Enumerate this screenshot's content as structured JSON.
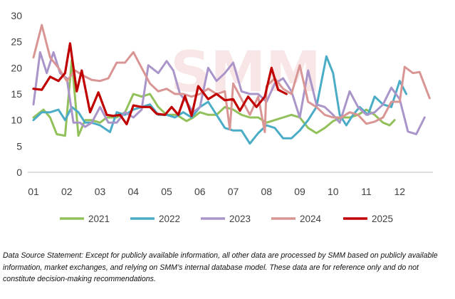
{
  "chart_data": {
    "type": "line",
    "title": "",
    "xlabel": "",
    "ylabel": "",
    "ylim": [
      0,
      30
    ],
    "y_ticks": [
      0,
      5,
      10,
      15,
      20,
      25,
      30
    ],
    "x_ticks": [
      "01",
      "02",
      "03",
      "04",
      "05",
      "06",
      "07",
      "08",
      "09",
      "10",
      "11",
      "12"
    ],
    "x_unit": "month (fractional position within year)",
    "grid": false,
    "legend_position": "bottom",
    "watermark": "SMM",
    "series": [
      {
        "name": "2021",
        "color": "#92c05a",
        "points": [
          [
            1.0,
            10.5
          ],
          [
            1.3,
            12.0
          ],
          [
            1.5,
            10.5
          ],
          [
            1.7,
            7.3
          ],
          [
            1.95,
            7.0
          ],
          [
            2.15,
            21.5
          ],
          [
            2.35,
            7.0
          ],
          [
            2.55,
            10.0
          ],
          [
            2.75,
            10.0
          ],
          [
            3.0,
            9.5
          ],
          [
            3.2,
            10.5
          ],
          [
            3.5,
            10.5
          ],
          [
            3.75,
            11.5
          ],
          [
            4.0,
            15.0
          ],
          [
            4.25,
            14.5
          ],
          [
            4.5,
            15.0
          ],
          [
            4.75,
            12.5
          ],
          [
            5.0,
            11.0
          ],
          [
            5.3,
            11.0
          ],
          [
            5.6,
            9.8
          ],
          [
            5.8,
            10.5
          ],
          [
            6.0,
            11.5
          ],
          [
            6.25,
            11.0
          ],
          [
            6.5,
            11.0
          ],
          [
            6.75,
            12.5
          ],
          [
            7.0,
            12.0
          ],
          [
            7.25,
            11.0
          ],
          [
            7.5,
            10.5
          ],
          [
            7.75,
            10.5
          ],
          [
            8.0,
            9.5
          ],
          [
            8.25,
            10.0
          ],
          [
            8.5,
            10.5
          ],
          [
            8.75,
            11.0
          ],
          [
            9.0,
            10.5
          ],
          [
            9.25,
            8.5
          ],
          [
            9.5,
            7.5
          ],
          [
            9.75,
            8.5
          ],
          [
            10.0,
            9.8
          ],
          [
            10.25,
            10.5
          ],
          [
            10.5,
            10.5
          ],
          [
            10.75,
            11.0
          ],
          [
            11.0,
            12.0
          ],
          [
            11.25,
            11.0
          ],
          [
            11.5,
            9.5
          ],
          [
            11.7,
            9.0
          ],
          [
            11.85,
            10.0
          ]
        ]
      },
      {
        "name": "2022",
        "color": "#4bacc6",
        "points": [
          [
            1.0,
            10.0
          ],
          [
            1.25,
            11.5
          ],
          [
            1.5,
            11.5
          ],
          [
            1.75,
            12.0
          ],
          [
            1.95,
            10.0
          ],
          [
            2.15,
            12.5
          ],
          [
            2.35,
            11.5
          ],
          [
            2.55,
            9.5
          ],
          [
            2.75,
            9.5
          ],
          [
            3.0,
            9.0
          ],
          [
            3.3,
            7.7
          ],
          [
            3.5,
            11.5
          ],
          [
            3.75,
            11.0
          ],
          [
            4.0,
            12.0
          ],
          [
            4.25,
            12.5
          ],
          [
            4.5,
            13.0
          ],
          [
            4.75,
            11.0
          ],
          [
            5.0,
            11.0
          ],
          [
            5.25,
            10.5
          ],
          [
            5.5,
            11.5
          ],
          [
            5.75,
            10.5
          ],
          [
            6.0,
            12.5
          ],
          [
            6.25,
            13.5
          ],
          [
            6.5,
            11.0
          ],
          [
            6.75,
            8.5
          ],
          [
            7.0,
            8.0
          ],
          [
            7.25,
            8.0
          ],
          [
            7.5,
            5.5
          ],
          [
            7.75,
            7.5
          ],
          [
            8.0,
            9.0
          ],
          [
            8.25,
            8.5
          ],
          [
            8.5,
            6.5
          ],
          [
            8.75,
            6.5
          ],
          [
            9.0,
            8.0
          ],
          [
            9.25,
            10.0
          ],
          [
            9.5,
            12.5
          ],
          [
            9.8,
            22.2
          ],
          [
            10.0,
            19.0
          ],
          [
            10.2,
            11.0
          ],
          [
            10.4,
            9.0
          ],
          [
            10.6,
            11.0
          ],
          [
            10.8,
            12.5
          ],
          [
            11.05,
            11.0
          ],
          [
            11.25,
            14.5
          ],
          [
            11.5,
            13.0
          ],
          [
            11.75,
            12.5
          ],
          [
            12.0,
            17.5
          ],
          [
            12.2,
            15.0
          ]
        ]
      },
      {
        "name": "2023",
        "color": "#a995c9",
        "points": [
          [
            1.0,
            13.0
          ],
          [
            1.2,
            23.0
          ],
          [
            1.4,
            19.0
          ],
          [
            1.6,
            23.0
          ],
          [
            1.8,
            19.0
          ],
          [
            2.0,
            18.0
          ],
          [
            2.2,
            9.5
          ],
          [
            2.4,
            9.5
          ],
          [
            2.55,
            8.7
          ],
          [
            2.75,
            9.5
          ],
          [
            3.0,
            12.5
          ],
          [
            3.25,
            9.5
          ],
          [
            3.5,
            9.5
          ],
          [
            3.75,
            11.5
          ],
          [
            4.0,
            10.5
          ],
          [
            4.25,
            12.0
          ],
          [
            4.45,
            20.5
          ],
          [
            4.75,
            19.0
          ],
          [
            5.0,
            21.3
          ],
          [
            5.2,
            19.5
          ],
          [
            5.4,
            15.0
          ],
          [
            5.6,
            13.5
          ],
          [
            5.8,
            11.5
          ],
          [
            6.0,
            12.5
          ],
          [
            6.25,
            20.0
          ],
          [
            6.5,
            17.5
          ],
          [
            6.75,
            19.0
          ],
          [
            7.0,
            21.0
          ],
          [
            7.25,
            15.5
          ],
          [
            7.5,
            15.0
          ],
          [
            7.75,
            15.0
          ],
          [
            8.0,
            13.5
          ],
          [
            8.25,
            17.0
          ],
          [
            8.5,
            18.0
          ],
          [
            8.75,
            15.5
          ],
          [
            9.0,
            10.5
          ],
          [
            9.25,
            19.5
          ],
          [
            9.5,
            13.0
          ],
          [
            9.75,
            12.5
          ],
          [
            10.0,
            11.0
          ],
          [
            10.2,
            9.5
          ],
          [
            10.5,
            15.5
          ],
          [
            10.75,
            12.5
          ],
          [
            11.0,
            11.0
          ],
          [
            11.25,
            11.5
          ],
          [
            11.5,
            13.0
          ],
          [
            11.75,
            16.2
          ],
          [
            12.0,
            14.0
          ],
          [
            12.25,
            7.8
          ],
          [
            12.5,
            7.3
          ],
          [
            12.75,
            10.5
          ]
        ]
      },
      {
        "name": "2024",
        "color": "#d99594",
        "points": [
          [
            1.0,
            22.0
          ],
          [
            1.25,
            28.2
          ],
          [
            1.5,
            22.0
          ],
          [
            1.75,
            20.0
          ],
          [
            2.0,
            17.5
          ],
          [
            2.25,
            19.5
          ],
          [
            2.5,
            18.5
          ],
          [
            2.75,
            17.7
          ],
          [
            3.0,
            17.5
          ],
          [
            3.25,
            18.0
          ],
          [
            3.5,
            21.0
          ],
          [
            3.75,
            21.0
          ],
          [
            4.0,
            23.0
          ],
          [
            4.25,
            20.0
          ],
          [
            4.5,
            17.0
          ],
          [
            4.75,
            15.5
          ],
          [
            5.0,
            16.0
          ],
          [
            5.25,
            15.0
          ],
          [
            5.5,
            15.0
          ],
          [
            5.75,
            14.5
          ],
          [
            6.0,
            15.0
          ],
          [
            6.25,
            16.0
          ],
          [
            6.5,
            15.0
          ],
          [
            6.75,
            15.5
          ],
          [
            6.9,
            8.2
          ],
          [
            7.0,
            17.0
          ],
          [
            7.25,
            14.0
          ],
          [
            7.5,
            11.0
          ],
          [
            7.75,
            14.5
          ],
          [
            7.95,
            7.7
          ],
          [
            8.0,
            16.5
          ],
          [
            8.25,
            18.0
          ],
          [
            8.5,
            16.0
          ],
          [
            8.75,
            15.0
          ],
          [
            9.0,
            20.5
          ],
          [
            9.25,
            13.5
          ],
          [
            9.5,
            12.5
          ],
          [
            9.75,
            11.0
          ],
          [
            10.0,
            10.5
          ],
          [
            10.25,
            10.5
          ],
          [
            10.5,
            11.5
          ],
          [
            10.75,
            11.0
          ],
          [
            11.0,
            9.3
          ],
          [
            11.25,
            9.7
          ],
          [
            11.5,
            10.5
          ],
          [
            11.75,
            13.5
          ],
          [
            12.0,
            13.5
          ],
          [
            12.15,
            20.2
          ],
          [
            12.4,
            19.0
          ],
          [
            12.6,
            19.2
          ],
          [
            12.9,
            14.2
          ]
        ]
      },
      {
        "name": "2025",
        "color": "#c00000",
        "points": [
          [
            1.0,
            16.0
          ],
          [
            1.25,
            15.8
          ],
          [
            1.5,
            18.3
          ],
          [
            1.75,
            17.5
          ],
          [
            1.95,
            19.0
          ],
          [
            2.1,
            24.7
          ],
          [
            2.3,
            15.5
          ],
          [
            2.45,
            19.5
          ],
          [
            2.7,
            11.5
          ],
          [
            2.95,
            15.3
          ],
          [
            3.2,
            11.0
          ],
          [
            3.4,
            10.8
          ],
          [
            3.6,
            11.0
          ],
          [
            3.8,
            9.2
          ],
          [
            4.0,
            12.8
          ],
          [
            4.25,
            12.5
          ],
          [
            4.5,
            12.5
          ],
          [
            4.7,
            11.2
          ],
          [
            4.95,
            11.0
          ],
          [
            5.15,
            12.5
          ],
          [
            5.35,
            11.0
          ],
          [
            5.55,
            14.6
          ],
          [
            5.75,
            10.8
          ],
          [
            5.95,
            16.5
          ],
          [
            6.25,
            14.0
          ],
          [
            6.5,
            15.0
          ],
          [
            6.75,
            13.8
          ],
          [
            7.0,
            14.0
          ],
          [
            7.2,
            11.8
          ],
          [
            7.45,
            14.5
          ],
          [
            7.7,
            12.5
          ],
          [
            7.95,
            14.5
          ],
          [
            8.15,
            20.0
          ],
          [
            8.35,
            15.8
          ],
          [
            8.6,
            15.0
          ]
        ]
      }
    ]
  },
  "footer": {
    "note": "Data Source Statement: Except for publicly available information, all other data are processed by SMM based on publicly available information, market exchanges, and relying on SMM’s internal database model. These data are for reference only and do not constitute decision-making recommendations."
  }
}
